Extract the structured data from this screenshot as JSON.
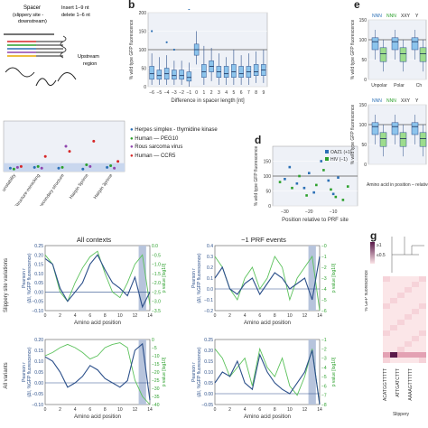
{
  "figure": {
    "panel_letters": {
      "b": "b",
      "d": "d",
      "e": "e",
      "g": "g"
    }
  },
  "panel_a": {
    "labels": {
      "spacer": "Spacer",
      "spacer_sub": "(slippery site -",
      "spacer_sub2": "downstream)",
      "insert": "Insert 1–9 nt",
      "delete": "delete 1–6 nt",
      "upstream": "Upstream",
      "region": "region"
    }
  },
  "panel_legend": {
    "entries": [
      {
        "label": "Herpes simplex - thymidine kinase",
        "color": "#2b6fb5"
      },
      {
        "label": "Human — PEG10",
        "color": "#2ca02c"
      },
      {
        "label": "Rous sarcoma virus",
        "color": "#8e44ad"
      },
      {
        "label": "Human — CCR5",
        "color": "#d62728"
      }
    ],
    "x_ticks": [
      "unstability",
      "Structure-mimicking",
      "No secondary structure",
      "Hairpin 5prime",
      "Hairpin 3prime"
    ]
  },
  "chart_data": [
    {
      "id": "b",
      "type": "box",
      "xlabel": "Difference in spacer length [nt]",
      "ylabel": "% wild type GFP fluorescence",
      "categories": [
        "−6",
        "−5",
        "−4",
        "−3",
        "−2",
        "−1",
        "0",
        "1",
        "2",
        "3",
        "4",
        "5",
        "6",
        "7",
        "8",
        "9"
      ],
      "ylim": [
        0,
        200
      ],
      "yticks": [
        "0",
        "50",
        "100",
        "150",
        "200"
      ],
      "reference_line": 100,
      "medians": [
        35,
        30,
        35,
        30,
        30,
        25,
        100,
        40,
        55,
        40,
        35,
        40,
        35,
        40,
        40,
        45
      ],
      "q1": [
        20,
        20,
        20,
        20,
        20,
        15,
        85,
        25,
        40,
        25,
        25,
        25,
        25,
        25,
        30,
        30
      ],
      "q3": [
        55,
        45,
        50,
        45,
        45,
        40,
        115,
        60,
        70,
        55,
        55,
        60,
        55,
        55,
        60,
        60
      ],
      "whisker_low": [
        5,
        5,
        5,
        5,
        5,
        0,
        60,
        5,
        15,
        5,
        5,
        5,
        5,
        5,
        10,
        10
      ],
      "whisker_high": [
        90,
        80,
        85,
        70,
        70,
        65,
        150,
        110,
        105,
        90,
        80,
        100,
        85,
        90,
        95,
        100
      ],
      "outliers": [
        [
          150
        ],
        [],
        [
          120
        ],
        [
          100
        ],
        [],
        [
          210
        ],
        [],
        [],
        [],
        [],
        [],
        [],
        [],
        [],
        [],
        []
      ]
    },
    {
      "id": "legend-panel",
      "type": "scatter",
      "ylabel": "",
      "categories": [
        "unstability",
        "Structure-mimicking",
        "No secondary structure",
        "Hairpin 5prime",
        "Hairpin 3prime"
      ],
      "ylim": [
        0,
        300
      ],
      "band": 50,
      "series": [
        {
          "name": "Herpes simplex - thymidine kinase",
          "values": [
            20,
            25,
            20,
            15,
            25
          ]
        },
        {
          "name": "Human — PEG10",
          "values": [
            15,
            30,
            25,
            40,
            35
          ]
        },
        {
          "name": "Rous sarcoma virus",
          "values": [
            25,
            20,
            150,
            30,
            20
          ]
        },
        {
          "name": "Human — CCR5",
          "values": [
            30,
            90,
            120,
            180,
            60
          ]
        }
      ]
    },
    {
      "id": "d",
      "type": "scatter",
      "xlabel": "Position relative to PRF site",
      "ylabel": "% wild type GFP fluorescence",
      "xlim": [
        -35,
        0
      ],
      "ylim": [
        0,
        200
      ],
      "xticks": [
        "−30",
        "−20",
        "−10"
      ],
      "yticks": [
        "0",
        "50",
        "100",
        "150"
      ],
      "reference_line": 100,
      "series": [
        {
          "name": "OAZ1 (+1)",
          "x": [
            -30,
            -28,
            -25,
            -22,
            -20,
            -18,
            -15,
            -12,
            -10,
            -8
          ],
          "y": [
            90,
            130,
            75,
            60,
            110,
            45,
            150,
            85,
            40,
            95
          ]
        },
        {
          "name": "HIV (−1)",
          "x": [
            -32,
            -27,
            -24,
            -21,
            -17,
            -14,
            -11,
            -9,
            -6,
            -4
          ],
          "y": [
            80,
            60,
            100,
            35,
            70,
            120,
            55,
            30,
            20,
            65
          ]
        }
      ]
    },
    {
      "id": "e",
      "type": "box",
      "ylabel": "% wild type GFP fluorescence",
      "xlabel": "Amino acid in position – relative to the slippery se",
      "top_labels": [
        "NNN",
        "NNN",
        "XXY",
        "Y"
      ],
      "categories": [
        "Unpolar",
        "Polar",
        "Ch"
      ],
      "ylim": [
        0,
        150
      ],
      "yticks": [
        "0",
        "50",
        "100",
        "150"
      ],
      "reference_line": 100
    },
    {
      "id": "slippery-all",
      "type": "line",
      "title_all": "All contexts",
      "title_prf": "−1 PRF events",
      "row_label_top": "Slippery site variations",
      "row_label_bottom": "All variants",
      "ylabel_left_top": "Pearson r",
      "ylabel_left_sub": "(ΔI, %GFP fluorescence)",
      "ylabel_right": "p value [log10]",
      "xlabel": "Amino acid position",
      "xticks": [
        "0",
        "2",
        "4",
        "6",
        "8",
        "10",
        "12",
        "14"
      ],
      "yticks_left_top": [
        "0.25",
        "0.20",
        "0.15",
        "0.10",
        "0.05",
        "0.00",
        "−0.05",
        "−0.10"
      ],
      "yticks_left_prf": [
        "0.4",
        "0.3",
        "0.2",
        "0.1",
        "0.0",
        "−0.1",
        "−0.2"
      ],
      "yticks_left_bottom": [
        "0.20",
        "0.15",
        "0.10",
        "0.05",
        "0.00",
        "−0.05",
        "−0.10"
      ],
      "yticks_left_bottom_prf": [
        "0.25",
        "0.20",
        "0.15",
        "0.10",
        "0.05",
        "0.00",
        "−0.05"
      ],
      "yticks_right": [
        "0.0",
        "−0.5",
        "−1.0",
        "−1.5",
        "−2.0",
        "−2.5",
        "−3.0",
        "−3.5"
      ],
      "yticks_right_prf": [
        "−0",
        "−1",
        "−2",
        "−3",
        "−4",
        "−5",
        "−6"
      ],
      "yticks_right_bottom": [
        "0",
        "−5",
        "−10",
        "−15",
        "−20",
        "−25",
        "−30",
        "−35",
        "−40"
      ],
      "yticks_right_bottom_prf": [
        "−1",
        "−2",
        "−3",
        "−4",
        "−5",
        "−6",
        "−7",
        "−8"
      ],
      "pearson_all": [
        0.18,
        0.15,
        0.02,
        -0.05,
        0.0,
        0.05,
        0.15,
        0.2,
        0.12,
        0.05,
        0.02,
        -0.02,
        0.08,
        -0.08,
        0.0
      ],
      "pvalue_all": [
        -0.5,
        -1.0,
        -2.5,
        -3.0,
        -2.0,
        -1.2,
        -0.6,
        -0.3,
        -1.5,
        -2.5,
        -2.8,
        -2.0,
        -1.0,
        -0.5,
        -3.2
      ],
      "pearson_prf": [
        0.1,
        0.2,
        0.0,
        -0.05,
        0.05,
        0.1,
        -0.05,
        0.05,
        0.15,
        0.1,
        0.0,
        0.05,
        0.1,
        -0.1,
        0.3
      ],
      "pvalue_prf": [
        -1,
        -2,
        -4,
        -5,
        -3,
        -2,
        -4,
        -3,
        -1,
        -2,
        -5,
        -3,
        -2,
        -1,
        -6
      ],
      "pearson_bottom": [
        0.12,
        0.1,
        0.05,
        -0.02,
        0.0,
        0.03,
        0.08,
        0.06,
        0.02,
        0.0,
        -0.02,
        0.01,
        0.15,
        0.18,
        -0.08
      ],
      "pvalue_bottom": [
        -10,
        -8,
        -5,
        -3,
        -5,
        -8,
        -12,
        -10,
        -5,
        -3,
        -2,
        -5,
        -25,
        -35,
        -40
      ],
      "pearson_bottom_prf": [
        0.05,
        0.1,
        0.08,
        0.15,
        0.05,
        0.02,
        0.18,
        0.1,
        0.05,
        0.02,
        0.0,
        0.05,
        0.1,
        0.2,
        -0.05
      ],
      "pvalue_bottom_prf": [
        -2,
        -3,
        -5,
        -4,
        -3,
        -6,
        -2,
        -4,
        -5,
        -3,
        -6,
        -7,
        -5,
        -2,
        -8
      ],
      "highlight_range": [
        12.5,
        13.5
      ]
    },
    {
      "id": "g",
      "type": "heatmap",
      "colorbar_label": "% GFP fluorescence",
      "colorbar_ticks": [
        "≥1",
        "≤0.5"
      ],
      "xlabel": "Slippery",
      "row_labels": [
        "ACATGGTTTTT",
        "ATTGATCTTT",
        "AAAAGTTTTTT"
      ]
    }
  ]
}
